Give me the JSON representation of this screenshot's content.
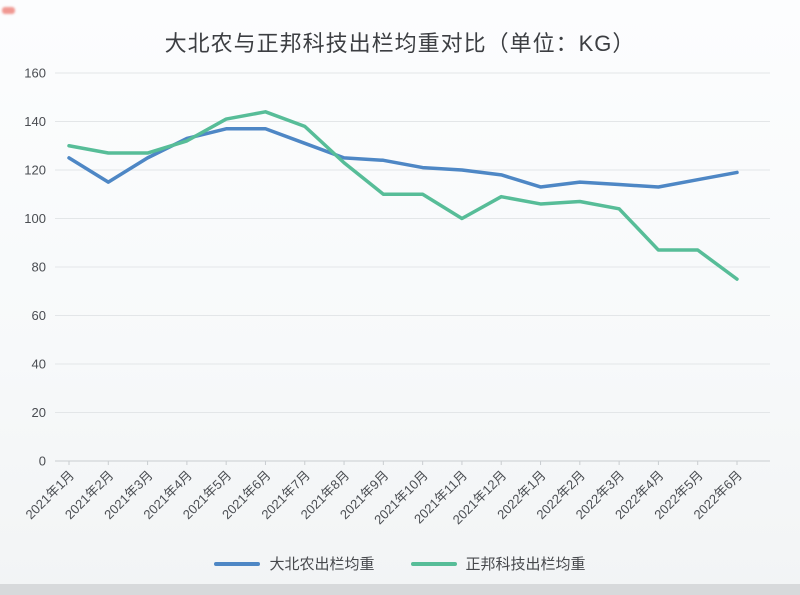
{
  "page": {
    "background": "#f7f9fa",
    "bottom_bar_color": "#d7d9db",
    "corner_mark_color": "#ee8078"
  },
  "axis_style": {
    "grid_color": "#e3e6e8",
    "axis_line_color": "#c9cdd0",
    "tick_label_color": "#4a4d52"
  },
  "chart_data": {
    "type": "line",
    "title": "大北农与正邦科技出栏均重对比（单位：KG）",
    "xlabel": "",
    "ylabel": "",
    "ylim": [
      0,
      160
    ],
    "ytick_step": 20,
    "grid": true,
    "legend_position": "bottom",
    "categories": [
      "2021年1月",
      "2021年2月",
      "2021年3月",
      "2021年4月",
      "2021年5月",
      "2021年6月",
      "2021年7月",
      "2021年8月",
      "2021年9月",
      "2021年10月",
      "2021年11月",
      "2021年12月",
      "2022年1月",
      "2022年2月",
      "2022年3月",
      "2022年4月",
      "2022年5月",
      "2022年6月"
    ],
    "series": [
      {
        "name": "大北农出栏均重",
        "color": "#4e87c5",
        "values": [
          125,
          115,
          125,
          133,
          137,
          137,
          131,
          125,
          124,
          121,
          120,
          118,
          113,
          115,
          114,
          113,
          116,
          119
        ]
      },
      {
        "name": "正邦科技出栏均重",
        "color": "#57bd98",
        "values": [
          130,
          127,
          127,
          132,
          141,
          144,
          138,
          123,
          110,
          110,
          100,
          109,
          106,
          107,
          104,
          87,
          87,
          75
        ]
      }
    ]
  }
}
